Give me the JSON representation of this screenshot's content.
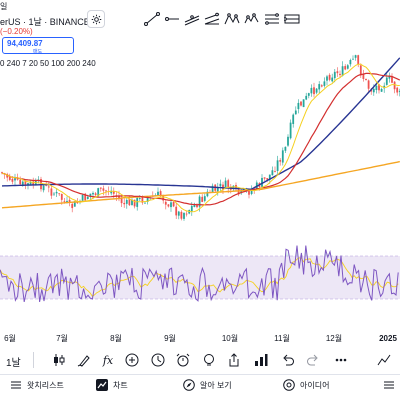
{
  "header": {
    "partial_top": "일",
    "symbol_line": "erUS · 1날 · BINANCE",
    "change": "(−0.20%)",
    "price_box": {
      "value": "94,409.87",
      "unit": "매도"
    },
    "ma_row": "0 240   7 20 50 100 200 240"
  },
  "drawing_tools": [
    "trend-line-icon",
    "horizontal-ray-icon",
    "parallel-channel-icon",
    "pitchfork-icon",
    "pattern-icon",
    "elliott-wave-icon",
    "fib-retracement-icon",
    "long-position-icon"
  ],
  "x_axis": {
    "labels": [
      "6월",
      "7월",
      "8월",
      "9월",
      "10월",
      "11월",
      "12월",
      "2025"
    ]
  },
  "chart_data": {
    "type": "candlestick",
    "title": "",
    "x": [
      "6월",
      "7월",
      "8월",
      "9월",
      "10월",
      "11월",
      "12월",
      "2025"
    ],
    "trend_approx_price_relative": "sideways Jun–Oct, sharp rise Nov, peak mid-Dec, slight pullback",
    "indicators": [
      "MA 20",
      "MA 50",
      "MA 240",
      "RSI"
    ],
    "colors": {
      "up": "#26a69a",
      "down": "#ef5350",
      "ma_short": "#f5d020",
      "ma_mid": "#d32f2f",
      "ma_long": "#283593",
      "ma_longest": "#f5a623",
      "rsi": "#7e57c2",
      "rsi_ma": "#f5d020",
      "rsi_band": "#ede7f6"
    }
  },
  "bottom_toolbar": {
    "interval": "1날",
    "icons": [
      "candles-icon",
      "brush-icon",
      "fx-icon",
      "plus-icon",
      "clock-icon",
      "alarm-icon",
      "lightbulb-icon",
      "share-icon",
      "chart-type-icon",
      "undo-icon",
      "redo-icon",
      "more-icon"
    ]
  },
  "nav": {
    "watchlist": "왓치리스트",
    "chart": "차트",
    "explore": "알아 보기",
    "ideas": "아이디어"
  }
}
